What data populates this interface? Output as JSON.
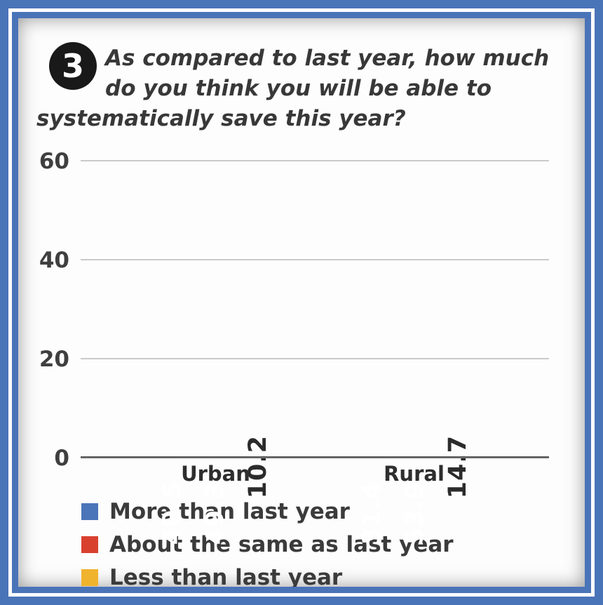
{
  "badge": "3",
  "title_lines": [
    "As compared to last year, how much",
    "do you think you will be able to",
    "systematically save this year?"
  ],
  "colors": {
    "frame": "#4a74b8",
    "badge_background": "#191919",
    "title_text": "#383838"
  },
  "chart_data": {
    "type": "bar",
    "title": "As compared to last year, how much do you think you will be able to systematically save this year?",
    "categories": [
      "Urban",
      "Rural"
    ],
    "series": [
      {
        "name": "More than last year",
        "color": "#4a75b8",
        "label_color": "#ffffff",
        "values": [
          40.5,
          31.4
        ]
      },
      {
        "name": "About the same as last year",
        "color": "#d9412f",
        "label_color": "#ffffff",
        "values": [
          49.3,
          53.9
        ]
      },
      {
        "name": "Less than last year",
        "color": "#f0b32e",
        "label_color": "#2b2b2b",
        "values": [
          10.2,
          14.7
        ]
      }
    ],
    "xlabel": "",
    "ylabel": "",
    "ylim": [
      0,
      60
    ],
    "yticks": [
      0,
      20,
      40,
      60
    ],
    "grid": true,
    "legend_position": "bottom",
    "value_labels_rotated": true
  }
}
